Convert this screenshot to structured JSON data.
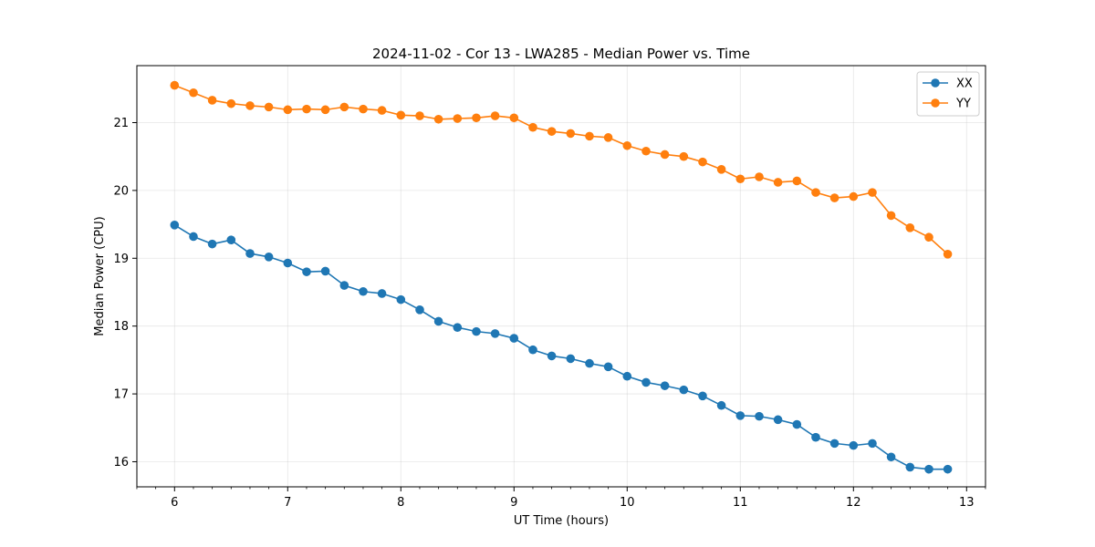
{
  "chart_data": {
    "type": "line",
    "title": "2024-11-02 - Cor 13 - LWA285 - Median Power vs. Time",
    "xlabel": "UT Time (hours)",
    "ylabel": "Median Power (CPU)",
    "xlim": [
      5.667,
      13.167
    ],
    "ylim": [
      15.63,
      21.84
    ],
    "xticks": [
      6,
      7,
      8,
      9,
      10,
      11,
      12,
      13
    ],
    "yticks": [
      16,
      17,
      18,
      19,
      20,
      21
    ],
    "grid": true,
    "legend_position": "top-right",
    "x": [
      6.0,
      6.167,
      6.333,
      6.5,
      6.667,
      6.833,
      7.0,
      7.167,
      7.333,
      7.5,
      7.667,
      7.833,
      8.0,
      8.167,
      8.333,
      8.5,
      8.667,
      8.833,
      9.0,
      9.167,
      9.333,
      9.5,
      9.667,
      9.833,
      10.0,
      10.167,
      10.333,
      10.5,
      10.667,
      10.833,
      11.0,
      11.167,
      11.333,
      11.5,
      11.667,
      11.833,
      12.0,
      12.167,
      12.333,
      12.5,
      12.667,
      12.833
    ],
    "series": [
      {
        "name": "XX",
        "color": "#1f77b4",
        "values": [
          19.49,
          19.32,
          19.21,
          19.27,
          19.07,
          19.02,
          18.93,
          18.8,
          18.81,
          18.6,
          18.51,
          18.48,
          18.39,
          18.24,
          18.07,
          17.98,
          17.92,
          17.89,
          17.82,
          17.65,
          17.56,
          17.52,
          17.45,
          17.4,
          17.26,
          17.17,
          17.12,
          17.06,
          16.97,
          16.83,
          16.68,
          16.67,
          16.62,
          16.55,
          16.36,
          16.27,
          16.24,
          16.27,
          16.07,
          15.92,
          15.89,
          15.89
        ]
      },
      {
        "name": "YY",
        "color": "#ff7f0e",
        "values": [
          21.55,
          21.44,
          21.33,
          21.28,
          21.25,
          21.23,
          21.19,
          21.2,
          21.19,
          21.23,
          21.2,
          21.18,
          21.11,
          21.1,
          21.05,
          21.06,
          21.07,
          21.1,
          21.07,
          20.93,
          20.87,
          20.84,
          20.8,
          20.78,
          20.66,
          20.58,
          20.53,
          20.5,
          20.42,
          20.31,
          20.17,
          20.2,
          20.12,
          20.14,
          19.97,
          19.89,
          19.91,
          19.97,
          19.63,
          19.45,
          19.31,
          19.06
        ]
      }
    ]
  }
}
